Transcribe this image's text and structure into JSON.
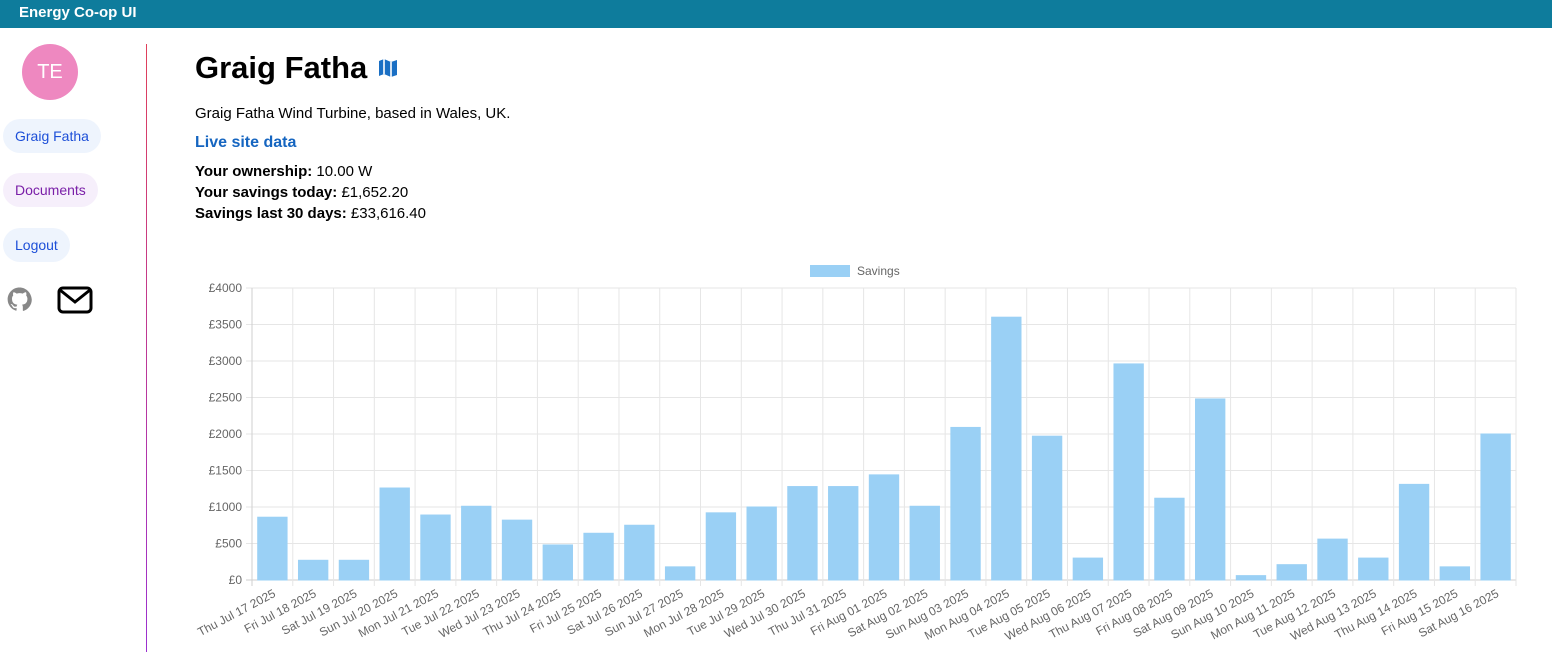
{
  "app": {
    "title": "Energy Co-op UI"
  },
  "sidebar": {
    "avatar_initials": "TE",
    "items": [
      {
        "label": "Graig Fatha"
      },
      {
        "label": "Documents"
      },
      {
        "label": "Logout"
      }
    ],
    "icons": [
      "github-icon",
      "mail-icon"
    ]
  },
  "site": {
    "name": "Graig Fatha",
    "description": "Graig Fatha Wind Turbine, based in Wales, UK.",
    "live_link": "Live site data",
    "ownership_label": "Your ownership:",
    "ownership_value": "10.00 W",
    "savings_today_label": "Your savings today:",
    "savings_today_value": "£1,652.20",
    "savings_30_label": "Savings last 30 days:",
    "savings_30_value": "£33,616.40"
  },
  "colors": {
    "topbar": "#0e7c9c",
    "avatar": "#ee88c0",
    "bar_fill": "#9ad0f5",
    "bar_stroke": "#36a2eb",
    "link": "#1565c0"
  },
  "chart_data": {
    "type": "bar",
    "legend": [
      "Savings"
    ],
    "legend_position": "top",
    "ylim": [
      0,
      4000
    ],
    "yticks": [
      "£0",
      "£500",
      "£1000",
      "£1500",
      "£2000",
      "£2500",
      "£3000",
      "£3500",
      "£4000"
    ],
    "grid": true,
    "categories": [
      "Thu Jul 17 2025",
      "Fri Jul 18 2025",
      "Sat Jul 19 2025",
      "Sun Jul 20 2025",
      "Mon Jul 21 2025",
      "Tue Jul 22 2025",
      "Wed Jul 23 2025",
      "Thu Jul 24 2025",
      "Fri Jul 25 2025",
      "Sat Jul 26 2025",
      "Sun Jul 27 2025",
      "Mon Jul 28 2025",
      "Tue Jul 29 2025",
      "Wed Jul 30 2025",
      "Thu Jul 31 2025",
      "Fri Aug 01 2025",
      "Sat Aug 02 2025",
      "Sun Aug 03 2025",
      "Mon Aug 04 2025",
      "Tue Aug 05 2025",
      "Wed Aug 06 2025",
      "Thu Aug 07 2025",
      "Fri Aug 08 2025",
      "Sat Aug 09 2025",
      "Sun Aug 10 2025",
      "Mon Aug 11 2025",
      "Tue Aug 12 2025",
      "Wed Aug 13 2025",
      "Thu Aug 14 2025",
      "Fri Aug 15 2025",
      "Sat Aug 16 2025"
    ],
    "series": [
      {
        "name": "Savings",
        "values": [
          860,
          270,
          270,
          1260,
          890,
          1010,
          820,
          480,
          640,
          750,
          180,
          920,
          1000,
          1280,
          1280,
          1440,
          1010,
          2090,
          3600,
          1970,
          300,
          2960,
          1120,
          2480,
          60,
          210,
          560,
          300,
          1310,
          180,
          2000
        ]
      }
    ]
  }
}
